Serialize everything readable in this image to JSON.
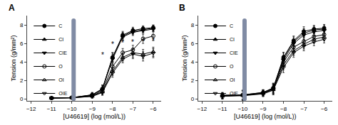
{
  "chart_data": [
    {
      "type": "line",
      "title": "A",
      "x": [
        -11,
        -10,
        -9,
        -8.5,
        -8,
        -7.5,
        -7,
        -6.5,
        -6
      ],
      "xlabel": "[U46619] (log (mol/L))",
      "ylabel": "Tension (g/mm²)",
      "xlim": [
        -12.2,
        -5.6
      ],
      "ylim": [
        -0.2,
        9.0
      ],
      "xticks": [
        -12,
        -11,
        -10,
        -9,
        -8,
        -7,
        -6
      ],
      "yticks": [
        0,
        2,
        4,
        6,
        8
      ],
      "grid": false,
      "legend": "upper left",
      "series": [
        {
          "name": "C",
          "color": "#000000",
          "marker": "circle",
          "values": [
            0.1,
            0.15,
            0.45,
            1.1,
            4.5,
            6.9,
            7.4,
            7.6,
            7.7
          ],
          "error": [
            0.05,
            0.05,
            0.25,
            0.4,
            0.5,
            0.4,
            0.35,
            0.3,
            0.3
          ]
        },
        {
          "name": "CI",
          "color": "#000000",
          "marker": "triangle-up",
          "values": [
            0.1,
            0.15,
            0.45,
            1.1,
            4.5,
            6.8,
            7.3,
            7.5,
            7.65
          ],
          "error": [
            0.05,
            0.05,
            0.25,
            0.4,
            0.5,
            0.4,
            0.35,
            0.3,
            0.3
          ]
        },
        {
          "name": "CIE",
          "color": "#000000",
          "marker": "triangle-down",
          "values": [
            0.1,
            0.15,
            0.4,
            1.0,
            4.3,
            6.7,
            7.2,
            7.4,
            7.55
          ],
          "error": [
            0.05,
            0.05,
            0.25,
            0.4,
            0.5,
            0.4,
            0.35,
            0.3,
            0.3
          ]
        },
        {
          "name": "O",
          "color": "#000000",
          "marker": "circle-open",
          "values": [
            0.1,
            0.15,
            0.35,
            0.85,
            3.5,
            5.0,
            5.3,
            6.5,
            6.8
          ],
          "error": [
            0.05,
            0.05,
            0.2,
            0.35,
            0.5,
            0.45,
            0.5,
            0.5,
            0.5
          ]
        },
        {
          "name": "OI",
          "color": "#000000",
          "marker": "triangle-up-open",
          "values": [
            0.1,
            0.12,
            0.3,
            0.75,
            3.0,
            4.5,
            5.0,
            4.85,
            5.1
          ],
          "error": [
            0.05,
            0.05,
            0.2,
            0.3,
            0.45,
            0.4,
            0.5,
            0.5,
            0.5
          ]
        },
        {
          "name": "OIE",
          "color": "#000000",
          "marker": "triangle-down-open",
          "values": [
            0.1,
            0.12,
            0.28,
            0.7,
            2.8,
            4.3,
            4.85,
            4.6,
            4.95
          ],
          "error": [
            0.05,
            0.05,
            0.18,
            0.3,
            0.45,
            0.4,
            0.5,
            0.5,
            0.5
          ]
        }
      ],
      "annotations": [
        {
          "x": -8.5,
          "y": 4.2,
          "text": "*"
        },
        {
          "x": -8,
          "y": 5.3,
          "text": "*"
        },
        {
          "x": -7.5,
          "y": 5.5,
          "text": "*"
        },
        {
          "x": -7,
          "y": 5.55,
          "text": "*"
        },
        {
          "x": -6.5,
          "y": 5.6,
          "text": "*"
        },
        {
          "x": -6,
          "y": 5.7,
          "text": "*"
        }
      ]
    },
    {
      "type": "line",
      "title": "B",
      "x": [
        -11,
        -10,
        -9,
        -8.5,
        -8,
        -7.5,
        -7,
        -6.5,
        -6
      ],
      "xlabel": "[U46619] (log (mol/L))",
      "ylabel": "Tension (g/mm²)",
      "xlim": [
        -12.2,
        -5.6
      ],
      "ylim": [
        -0.2,
        9.0
      ],
      "xticks": [
        -12,
        -11,
        -10,
        -9,
        -8,
        -7,
        -6
      ],
      "yticks": [
        0,
        2,
        4,
        6,
        8
      ],
      "grid": false,
      "legend": "upper left",
      "series": [
        {
          "name": "C",
          "color": "#000000",
          "marker": "circle",
          "values": [
            0.4,
            0.45,
            0.7,
            1.2,
            4.5,
            6.3,
            7.3,
            7.55,
            7.65
          ],
          "error": [
            0.3,
            0.5,
            0.3,
            0.5,
            0.55,
            0.5,
            0.5,
            0.4,
            0.4
          ]
        },
        {
          "name": "CI",
          "color": "#000000",
          "marker": "triangle-up",
          "values": [
            0.4,
            0.45,
            0.7,
            1.2,
            4.4,
            6.2,
            7.1,
            7.45,
            7.55
          ],
          "error": [
            0.3,
            0.5,
            0.3,
            0.5,
            0.55,
            0.5,
            0.5,
            0.4,
            0.4
          ]
        },
        {
          "name": "CIE",
          "color": "#000000",
          "marker": "triangle-down",
          "values": [
            0.35,
            0.4,
            0.65,
            1.1,
            4.2,
            6.0,
            6.9,
            7.25,
            7.4
          ],
          "error": [
            0.3,
            0.5,
            0.3,
            0.5,
            0.55,
            0.5,
            0.5,
            0.4,
            0.4
          ]
        },
        {
          "name": "O",
          "color": "#000000",
          "marker": "circle-open",
          "values": [
            0.35,
            0.4,
            0.65,
            1.1,
            4.0,
            5.6,
            6.2,
            6.75,
            6.95
          ],
          "error": [
            0.3,
            0.5,
            0.3,
            0.5,
            0.55,
            0.5,
            0.5,
            0.4,
            0.4
          ]
        },
        {
          "name": "OI",
          "color": "#000000",
          "marker": "triangle-up-open",
          "values": [
            0.3,
            0.4,
            0.6,
            1.0,
            3.7,
            5.2,
            5.9,
            6.45,
            6.7
          ],
          "error": [
            0.3,
            0.5,
            0.3,
            0.5,
            0.55,
            0.5,
            0.5,
            0.4,
            0.4
          ]
        },
        {
          "name": "OIE",
          "color": "#000000",
          "marker": "triangle-down-open",
          "values": [
            0.3,
            0.35,
            0.55,
            0.95,
            3.4,
            5.0,
            5.7,
            6.15,
            6.45
          ],
          "error": [
            0.3,
            0.5,
            0.3,
            0.5,
            0.55,
            0.5,
            0.5,
            0.4,
            0.4
          ]
        }
      ]
    }
  ]
}
